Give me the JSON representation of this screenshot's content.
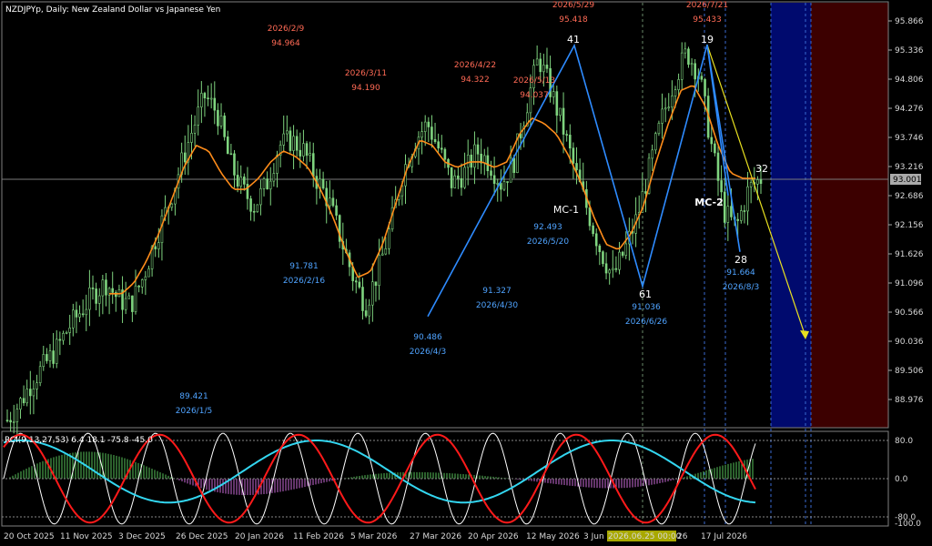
{
  "header": {
    "title": "NZDJPYp, Daily:  New Zealand Dollar vs Japanese Yen",
    "indicator": "RCI(9,13,27,53) 6.4 18.1 -75.8 -45.0"
  },
  "colors": {
    "background": "#000000",
    "candle": "#7fd47f",
    "ma": "#ff8c1a",
    "zigzag": "#2e8bff",
    "arrow": "#e8e020",
    "price_label_red": "#ff6a55",
    "price_label_blue": "#4fa3ff",
    "rci_red": "#ff1a1a",
    "rci_cyan": "#33d6f0",
    "rci_white": "#ffffff",
    "hist_green": "#57c25a",
    "hist_magenta": "#c76ad6",
    "zone_blue": "#000a6e",
    "zone_red": "#3c0000"
  },
  "price_axis": {
    "ticks": [
      "95.866",
      "95.336",
      "94.806",
      "94.276",
      "93.746",
      "93.216",
      "92.686",
      "92.156",
      "91.626",
      "91.096",
      "90.566",
      "90.036",
      "89.506",
      "88.976"
    ],
    "current_price": "93.001"
  },
  "time_axis": {
    "ticks": [
      "20 Oct 2025",
      "11 Nov 2025",
      "3 Dec 2025",
      "26 Dec 2025",
      "20 Jan 2026",
      "11 Feb 2026",
      "5 Mar 2026",
      "27 Mar 2026",
      "20 Apr 2026",
      "12 May 2026",
      "3 Jun",
      "2026.06.25 00:00",
      "26",
      "17 Jul 2026"
    ]
  },
  "rci_axis": {
    "ticks": [
      "80.0",
      "0.0",
      "-80.0",
      "-100.0"
    ]
  },
  "annotations": {
    "highs": [
      {
        "date": "2026/2/9",
        "price": "94.964"
      },
      {
        "date": "2026/3/11",
        "price": "94.190"
      },
      {
        "date": "2026/4/22",
        "price": "94.322"
      },
      {
        "date": "2026/5/13",
        "price": "94.037"
      },
      {
        "date": "2026/5/29",
        "price": "95.418"
      },
      {
        "date": "2026/7/21",
        "price": "95.433"
      }
    ],
    "lows": [
      {
        "price": "89.421",
        "date": "2026/1/5"
      },
      {
        "price": "91.781",
        "date": "2026/2/16"
      },
      {
        "price": "90.486",
        "date": "2026/4/3"
      },
      {
        "price": "91.327",
        "date": "2026/4/30"
      },
      {
        "price": "92.493",
        "date": "2026/5/20"
      },
      {
        "price": "91.036",
        "date": "2026/6/26"
      },
      {
        "price": "91.664",
        "date": "2026/8/3"
      }
    ],
    "wave_labels": [
      "41",
      "19",
      "61",
      "28",
      "32"
    ],
    "mc_labels": [
      "MC-1",
      "MC-2"
    ]
  },
  "chart_data": {
    "type": "candlestick",
    "title": "NZDJPYp, Daily:  New Zealand Dollar vs Japanese Yen",
    "ylim": [
      88.5,
      96.2
    ],
    "zigzag": [
      {
        "date": "2026/4/3",
        "price": 90.486
      },
      {
        "date": "2026/5/29",
        "price": 95.418
      },
      {
        "date": "2026/6/26",
        "price": 91.036
      },
      {
        "date": "2026/7/21",
        "price": 95.433
      },
      {
        "date": "2026/8/3",
        "price": 91.664
      }
    ],
    "swing_highs": [
      {
        "date": "2026/2/9",
        "price": 94.964
      },
      {
        "date": "2026/3/11",
        "price": 94.19
      },
      {
        "date": "2026/4/22",
        "price": 94.322
      },
      {
        "date": "2026/5/13",
        "price": 94.037
      },
      {
        "date": "2026/5/29",
        "price": 95.418
      },
      {
        "date": "2026/7/21",
        "price": 95.433
      }
    ],
    "swing_lows": [
      {
        "date": "2026/1/5",
        "price": 89.421
      },
      {
        "date": "2026/2/16",
        "price": 91.781
      },
      {
        "date": "2026/4/3",
        "price": 90.486
      },
      {
        "date": "2026/4/30",
        "price": 91.327
      },
      {
        "date": "2026/5/20",
        "price": 92.493
      },
      {
        "date": "2026/6/26",
        "price": 91.036
      },
      {
        "date": "2026/8/3",
        "price": 91.664
      }
    ],
    "current_price": 93.001,
    "close_path": [
      88.6,
      88.9,
      89.3,
      89.6,
      89.9,
      90.3,
      90.6,
      90.9,
      91.1,
      90.8,
      90.7,
      91.2,
      91.9,
      92.5,
      93.2,
      93.9,
      94.5,
      94.2,
      93.3,
      92.8,
      92.5,
      92.9,
      93.6,
      93.7,
      93.5,
      93.0,
      92.6,
      91.9,
      91.2,
      90.7,
      91.3,
      92.1,
      93.1,
      93.7,
      94.0,
      93.5,
      92.9,
      93.1,
      93.5,
      93.3,
      92.9,
      93.3,
      94.3,
      95.2,
      94.6,
      93.9,
      93.1,
      92.4,
      91.7,
      91.2,
      91.7,
      92.3,
      93.2,
      94.1,
      94.8,
      95.3,
      94.9,
      93.6,
      92.4,
      92.1,
      92.8,
      93.0
    ],
    "ma_path": [
      88.7,
      88.9,
      89.2,
      89.5,
      89.8,
      90.1,
      90.4,
      90.7,
      90.9,
      90.9,
      90.9,
      91.1,
      91.5,
      92.0,
      92.6,
      93.2,
      93.6,
      93.5,
      93.1,
      92.8,
      92.8,
      93.0,
      93.3,
      93.5,
      93.4,
      93.2,
      92.8,
      92.3,
      91.7,
      91.2,
      91.3,
      91.8,
      92.5,
      93.2,
      93.7,
      93.6,
      93.3,
      93.2,
      93.3,
      93.3,
      93.2,
      93.3,
      93.8,
      94.1,
      94.0,
      93.8,
      93.4,
      92.9,
      92.3,
      91.8,
      91.7,
      92.0,
      92.5,
      93.3,
      94.0,
      94.6,
      94.7,
      94.3,
      93.6,
      93.1,
      93.0,
      93.0
    ],
    "rci_axis": [
      -100,
      -80,
      0,
      80
    ]
  }
}
